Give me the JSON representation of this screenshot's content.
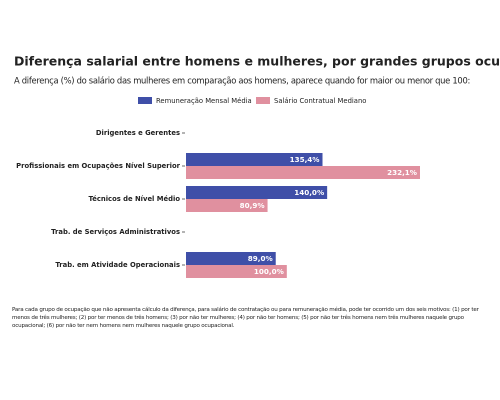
{
  "chart_data": {
    "type": "bar",
    "orientation": "horizontal",
    "title": "Diferença salarial entre homens e mulheres, por grandes grupos ocupacionais",
    "subtitle": "A diferença (%) do salário das mulheres em comparação aos homens, aparece quando for maior ou menor que 100:",
    "categories": [
      "Dirigentes e Gerentes",
      "Profissionais em Ocupações Nível Superior",
      "Técnicos de Nível Médio",
      "Trab. de Serviços Administrativos",
      "Trab. em Atividade Operacionais"
    ],
    "series": [
      {
        "name": "Remuneração Mensal Média",
        "color": "#3f4fa8",
        "values": [
          null,
          135.4,
          140.0,
          null,
          89.0
        ],
        "value_labels": [
          null,
          "135,4%",
          "140,0%",
          null,
          "89,0%"
        ]
      },
      {
        "name": "Salário Contratual Mediano",
        "color": "#e0909f",
        "values": [
          null,
          232.1,
          80.9,
          null,
          100.0
        ],
        "value_labels": [
          null,
          "232,1%",
          "80,9%",
          null,
          "100,0%"
        ]
      }
    ],
    "legend": "top",
    "footnote": "Para cada grupo de ocupação que não apresenta cálculo da diferença, para salário de contratação ou para remuneração média, pode ter ocorrido um dos seis motivos: (1) por ter menos de três mulheres; (2) por ter menos de três homens; (3) por não ter mulheres; (4) por não ter homens; (5) por não ter três homens nem três mulheres naquele grupo ocupacional; (6) por não ter nem homens nem mulheres naquele grupo ocupacional."
  }
}
